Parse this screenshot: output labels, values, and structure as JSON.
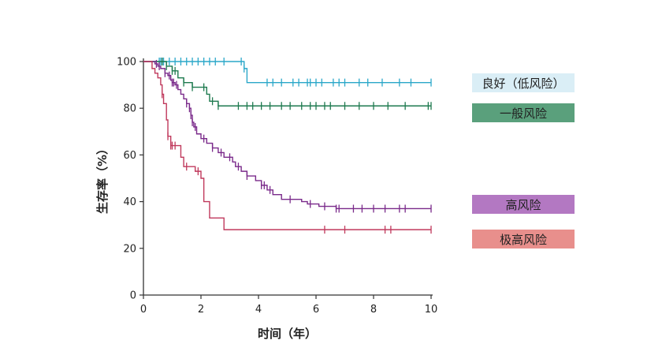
{
  "chart_data": {
    "type": "line",
    "subtype": "kaplan-meier step curve",
    "title": "",
    "xlabel": "时间（年）",
    "ylabel": "生存率（%）",
    "xlim": [
      0,
      10
    ],
    "ylim": [
      0,
      100
    ],
    "xticks": [
      0,
      2,
      4,
      6,
      8,
      10
    ],
    "yticks": [
      0,
      20,
      40,
      60,
      80,
      100
    ],
    "legend_placement": "right",
    "series": [
      {
        "name": "良好（低风险）",
        "color": "#2aa7c9",
        "legend_bg": "#daeef6",
        "steps": [
          [
            0,
            100
          ],
          [
            3.5,
            97
          ],
          [
            3.6,
            91
          ],
          [
            10,
            91
          ]
        ],
        "censors": [
          0.55,
          0.6,
          0.65,
          0.7,
          0.9,
          1.1,
          1.3,
          1.5,
          1.7,
          1.9,
          2.1,
          2.3,
          2.5,
          2.8,
          3.4,
          3.5,
          4.3,
          4.5,
          4.8,
          5.2,
          5.4,
          5.7,
          5.8,
          6.0,
          6.2,
          6.6,
          6.8,
          7.0,
          7.5,
          7.8,
          8.3,
          8.9,
          9.3,
          10.0
        ]
      },
      {
        "name": "一般风险",
        "color": "#1e7a4f",
        "legend_bg": "#5aa07c",
        "steps": [
          [
            0,
            100
          ],
          [
            0.8,
            98
          ],
          [
            1.0,
            96
          ],
          [
            1.2,
            93
          ],
          [
            1.4,
            91
          ],
          [
            1.7,
            89
          ],
          [
            2.2,
            86
          ],
          [
            2.3,
            83
          ],
          [
            2.6,
            81
          ],
          [
            10,
            81
          ]
        ],
        "censors": [
          0.65,
          0.8,
          1.0,
          1.1,
          1.4,
          1.7,
          2.1,
          2.4,
          2.6,
          3.3,
          3.6,
          3.8,
          4.1,
          4.4,
          4.8,
          5.1,
          5.5,
          5.8,
          6.0,
          6.3,
          6.5,
          7.0,
          7.5,
          8.0,
          8.5,
          9.1,
          9.9,
          10.0
        ]
      },
      {
        "name": "高风险",
        "color": "#7a2a8a",
        "legend_bg": "#b378c2",
        "steps": [
          [
            0,
            100
          ],
          [
            0.4,
            99
          ],
          [
            0.5,
            98
          ],
          [
            0.6,
            97
          ],
          [
            0.75,
            95
          ],
          [
            0.85,
            94
          ],
          [
            0.95,
            92
          ],
          [
            1.0,
            91
          ],
          [
            1.1,
            90
          ],
          [
            1.2,
            88
          ],
          [
            1.3,
            86
          ],
          [
            1.4,
            84
          ],
          [
            1.5,
            82
          ],
          [
            1.6,
            80
          ],
          [
            1.65,
            77
          ],
          [
            1.7,
            74
          ],
          [
            1.75,
            72
          ],
          [
            1.85,
            69
          ],
          [
            2.0,
            67
          ],
          [
            2.2,
            65
          ],
          [
            2.4,
            63
          ],
          [
            2.6,
            61
          ],
          [
            2.8,
            59
          ],
          [
            3.1,
            57
          ],
          [
            3.2,
            55
          ],
          [
            3.4,
            53
          ],
          [
            3.6,
            51
          ],
          [
            3.9,
            49
          ],
          [
            4.1,
            47
          ],
          [
            4.3,
            45
          ],
          [
            4.5,
            43
          ],
          [
            4.8,
            41
          ],
          [
            5.5,
            40
          ],
          [
            5.7,
            39
          ],
          [
            6.0,
            39
          ],
          [
            6.1,
            38
          ],
          [
            6.6,
            38
          ],
          [
            6.7,
            37
          ],
          [
            10,
            37
          ]
        ],
        "censors": [
          0.45,
          0.55,
          0.75,
          0.9,
          1.0,
          1.05,
          1.15,
          1.5,
          1.6,
          1.65,
          1.7,
          1.8,
          2.1,
          2.4,
          2.7,
          3.0,
          3.3,
          3.6,
          4.1,
          4.2,
          4.4,
          5.1,
          5.8,
          6.3,
          6.7,
          6.8,
          7.3,
          7.6,
          8.0,
          8.4,
          8.9,
          9.1,
          10.0
        ]
      },
      {
        "name": "极高风险",
        "color": "#c0395c",
        "legend_bg": "#e88f8c",
        "steps": [
          [
            0,
            100
          ],
          [
            0.3,
            97
          ],
          [
            0.4,
            95
          ],
          [
            0.5,
            93
          ],
          [
            0.6,
            90
          ],
          [
            0.65,
            86
          ],
          [
            0.7,
            82
          ],
          [
            0.8,
            75
          ],
          [
            0.85,
            68
          ],
          [
            0.95,
            64
          ],
          [
            1.3,
            59
          ],
          [
            1.4,
            55
          ],
          [
            1.8,
            53
          ],
          [
            2.0,
            50
          ],
          [
            2.1,
            40
          ],
          [
            2.3,
            33
          ],
          [
            2.8,
            28
          ],
          [
            10,
            28
          ]
        ],
        "censors": [
          0.65,
          0.85,
          0.95,
          1.0,
          1.1,
          1.5,
          1.9,
          6.3,
          7.0,
          8.4,
          8.6,
          10.0
        ]
      }
    ]
  }
}
